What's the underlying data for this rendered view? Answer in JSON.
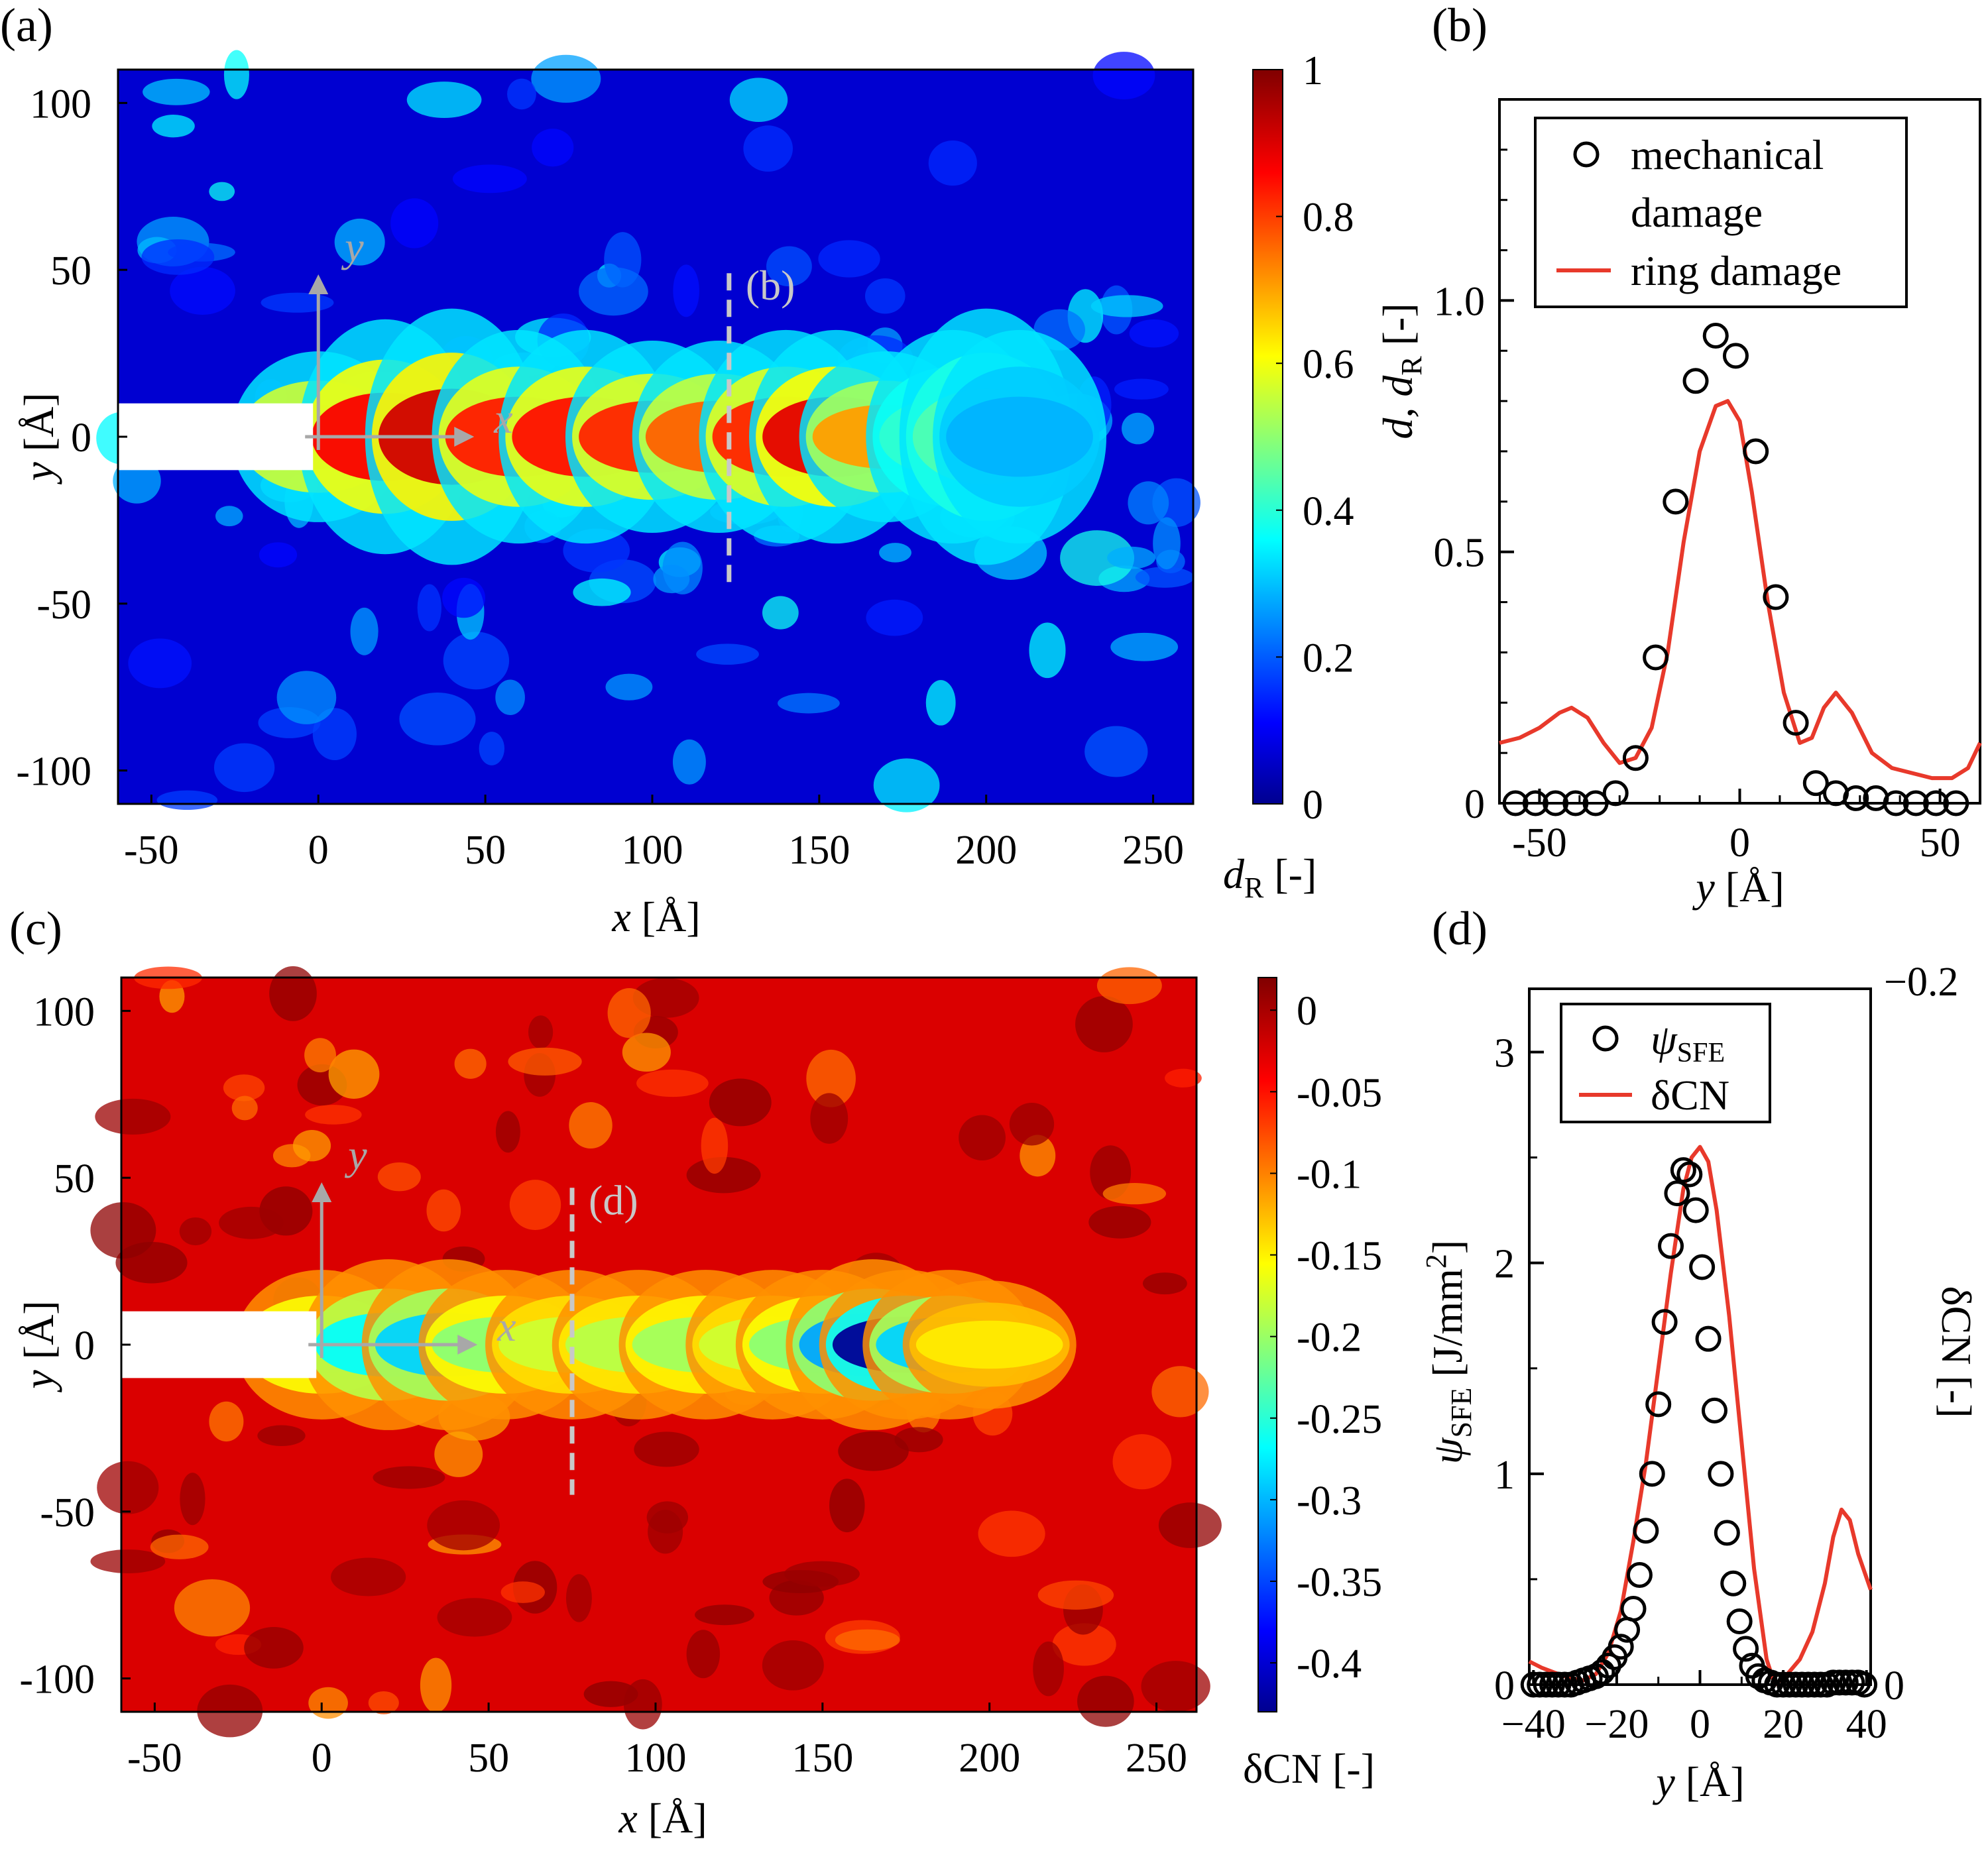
{
  "panels": {
    "a": {
      "label": "(a)",
      "xlabel_italic": "x",
      "xlabel_unit": " [Å]",
      "ylabel_italic": "y",
      "ylabel_unit": " [Å]",
      "xticks": [
        "-50",
        "0",
        "50",
        "100",
        "150",
        "200",
        "250"
      ],
      "yticks": [
        "100",
        "50",
        "0",
        "-50",
        "-100"
      ],
      "colorbar": {
        "label_italic": "d",
        "label_sub": "R",
        "label_unit": " [-]",
        "ticks": [
          "1",
          "0.8",
          "0.6",
          "0.4",
          "0.2",
          "0"
        ]
      },
      "axis_x_label": "x",
      "axis_y_label": "y",
      "cut_label": "(b)"
    },
    "b": {
      "label": "(b)",
      "xlabel_italic": "y",
      "xlabel_unit": " [Å]",
      "ylabel": "d, d",
      "ylabel_sub": "R",
      "ylabel_unit": " [-]",
      "xticks": [
        "-50",
        "0",
        "50"
      ],
      "yticks": [
        "1.0",
        "0.5",
        "0"
      ],
      "legend": {
        "marker_line1": "mechanical",
        "marker_line2": "damage",
        "line": "ring damage"
      }
    },
    "c": {
      "label": "(c)",
      "xlabel_italic": "x",
      "xlabel_unit": " [Å]",
      "ylabel_italic": "y",
      "ylabel_unit": " [Å]",
      "xticks": [
        "-50",
        "0",
        "50",
        "100",
        "150",
        "200",
        "250"
      ],
      "yticks": [
        "100",
        "50",
        "0",
        "-50",
        "-100"
      ],
      "colorbar": {
        "label": "δCN [-]",
        "ticks": [
          "0",
          "-0.05",
          "-0.1",
          "-0.15",
          "-0.2",
          "-0.25",
          "-0.3",
          "-0.35",
          "-0.4"
        ]
      },
      "axis_x_label": "x",
      "axis_y_label": "y",
      "cut_label": "(d)"
    },
    "d": {
      "label": "(d)",
      "xlabel_italic": "y",
      "xlabel_unit": " [Å]",
      "ylabel_italic": "ψ",
      "ylabel_sub": "SFE",
      "ylabel_unit": " [J/mm",
      "ylabel_sup": "2",
      "ylabel_end": "]",
      "right_ylabel": "δCN [-]",
      "xticks": [
        "−40",
        "−20",
        "0",
        "20",
        "40"
      ],
      "yticks": [
        "3",
        "2",
        "1",
        "0"
      ],
      "right_ticks": [
        "−0.2",
        "0"
      ],
      "legend": {
        "marker_sym": "ψ",
        "marker_sub": "SFE",
        "line": "δCN"
      }
    }
  },
  "colors": {
    "ring_line": "#e8392b",
    "marker": "#000000",
    "arrow": "#a8a8a8",
    "cut_line": "#c8c8c8"
  },
  "chart_data": [
    {
      "panel": "a",
      "type": "heatmap",
      "quantity": "d_R",
      "xlim": [
        -60,
        262
      ],
      "ylim": [
        -110,
        110
      ],
      "clim": [
        0,
        1
      ],
      "colormap": "jet",
      "notch": {
        "x": [
          -60,
          0
        ],
        "y": [
          -10,
          10
        ]
      },
      "cut_x": 123,
      "cut_y_range": [
        -44,
        49
      ],
      "band": [
        [
          0,
          0.8,
          8
        ],
        [
          20,
          0.88,
          11
        ],
        [
          40,
          0.92,
          12
        ],
        [
          60,
          0.85,
          10
        ],
        [
          80,
          0.86,
          10
        ],
        [
          100,
          0.84,
          9
        ],
        [
          120,
          0.78,
          9
        ],
        [
          140,
          0.84,
          10
        ],
        [
          155,
          0.9,
          10
        ],
        [
          170,
          0.72,
          8
        ],
        [
          190,
          0.42,
          10
        ],
        [
          200,
          0.45,
          12
        ],
        [
          210,
          0.3,
          10
        ]
      ]
    },
    {
      "panel": "b",
      "type": "scatter+line",
      "xlim": [
        -60,
        60
      ],
      "ylim": [
        0,
        1.4
      ],
      "xlabel": "y [Å]",
      "ylabel": "d, d_R [-]",
      "series": [
        {
          "name": "mechanical damage",
          "kind": "scatter",
          "x": [
            -56,
            -51,
            -46,
            -41,
            -36,
            -31,
            -26,
            -21,
            -16,
            -11,
            -6,
            -1,
            4,
            9,
            14,
            19,
            24,
            29,
            34,
            39,
            44,
            49,
            54
          ],
          "y": [
            0,
            0,
            0,
            0,
            0,
            0.02,
            0.09,
            0.29,
            0.6,
            0.84,
            0.93,
            0.89,
            0.7,
            0.41,
            0.16,
            0.04,
            0.02,
            0.01,
            0.01,
            0,
            0,
            0,
            0
          ]
        },
        {
          "name": "ring damage",
          "kind": "line",
          "x": [
            -60,
            -55,
            -50,
            -45,
            -42,
            -38,
            -34,
            -30,
            -26,
            -22,
            -18,
            -14,
            -10,
            -6,
            -3,
            0,
            3,
            7,
            11,
            15,
            18,
            21,
            24,
            28,
            33,
            38,
            43,
            48,
            53,
            57,
            60
          ],
          "y": [
            0.12,
            0.13,
            0.15,
            0.18,
            0.19,
            0.17,
            0.12,
            0.08,
            0.09,
            0.15,
            0.3,
            0.52,
            0.7,
            0.79,
            0.8,
            0.76,
            0.62,
            0.4,
            0.22,
            0.12,
            0.13,
            0.19,
            0.22,
            0.18,
            0.1,
            0.07,
            0.06,
            0.05,
            0.05,
            0.07,
            0.12
          ]
        }
      ]
    },
    {
      "panel": "c",
      "type": "heatmap",
      "quantity": "δCN",
      "xlim": [
        -60,
        262
      ],
      "ylim": [
        -110,
        110
      ],
      "clim": [
        -0.43,
        0.02
      ],
      "colormap": "jet",
      "notch": {
        "x": [
          -60,
          0
        ],
        "y": [
          -10,
          10
        ]
      },
      "cut_x": 75,
      "cut_y_range": [
        -45,
        47
      ],
      "band": [
        [
          0,
          -0.2,
          7
        ],
        [
          20,
          -0.26,
          8
        ],
        [
          38,
          -0.28,
          8
        ],
        [
          55,
          -0.2,
          7
        ],
        [
          75,
          -0.17,
          7
        ],
        [
          95,
          -0.18,
          7
        ],
        [
          115,
          -0.19,
          7
        ],
        [
          135,
          -0.17,
          7
        ],
        [
          150,
          -0.2,
          7
        ],
        [
          165,
          -0.3,
          8
        ],
        [
          175,
          -0.42,
          7
        ],
        [
          188,
          -0.28,
          7
        ],
        [
          200,
          -0.14,
          6
        ]
      ]
    },
    {
      "panel": "d",
      "type": "scatter+line",
      "xlim": [
        -41,
        41
      ],
      "ylim": [
        0,
        3.3
      ],
      "right_ylim": [
        -0.2,
        0
      ],
      "xlabel": "y [Å]",
      "ylabel": "ψSFE [J/mm2]",
      "right_ylabel": "δCN [-]",
      "series": [
        {
          "name": "ψSFE",
          "kind": "scatter",
          "x": [
            -40,
            -38.5,
            -37,
            -35.5,
            -34,
            -32.5,
            -31,
            -29.5,
            -28,
            -26.5,
            -25,
            -23.5,
            -22,
            -20.5,
            -19,
            -17.5,
            -16,
            -14.5,
            -13,
            -11.5,
            -10,
            -8.5,
            -7,
            -5.5,
            -4,
            -2.5,
            -1,
            0.5,
            2,
            3.5,
            5,
            6.5,
            8,
            9.5,
            11,
            12.5,
            14,
            15.5,
            17,
            18.5,
            20,
            21.5,
            23,
            24.5,
            26,
            27.5,
            29,
            30.5,
            32,
            33.5,
            35,
            36.5,
            38,
            39.5
          ],
          "y": [
            0,
            0,
            0,
            0,
            0,
            0,
            0,
            0.01,
            0.02,
            0.03,
            0.04,
            0.06,
            0.09,
            0.13,
            0.18,
            0.26,
            0.36,
            0.52,
            0.73,
            1.0,
            1.33,
            1.72,
            2.08,
            2.33,
            2.44,
            2.42,
            2.25,
            1.98,
            1.64,
            1.3,
            1.0,
            0.72,
            0.48,
            0.3,
            0.17,
            0.09,
            0.04,
            0.02,
            0.01,
            0,
            0,
            0,
            0,
            0,
            0,
            0,
            0,
            0,
            0.01,
            0.01,
            0.01,
            0.01,
            0.01,
            0
          ]
        },
        {
          "name": "δCN",
          "kind": "line",
          "x": [
            -41,
            -38,
            -34,
            -31,
            -28,
            -25,
            -22,
            -19,
            -16,
            -13,
            -10,
            -7,
            -4,
            -2,
            0,
            2,
            4,
            7,
            10,
            13,
            16,
            18,
            21,
            24,
            27,
            30,
            32,
            34,
            36,
            38,
            41
          ],
          "y": [
            0.11,
            0.08,
            0.05,
            0.03,
            0.02,
            0.05,
            0.15,
            0.35,
            0.68,
            1.05,
            1.5,
            1.95,
            2.35,
            2.5,
            2.55,
            2.48,
            2.25,
            1.75,
            1.15,
            0.55,
            0.12,
            0.0,
            0.05,
            0.12,
            0.25,
            0.48,
            0.7,
            0.83,
            0.78,
            0.62,
            0.45
          ]
        }
      ]
    }
  ]
}
